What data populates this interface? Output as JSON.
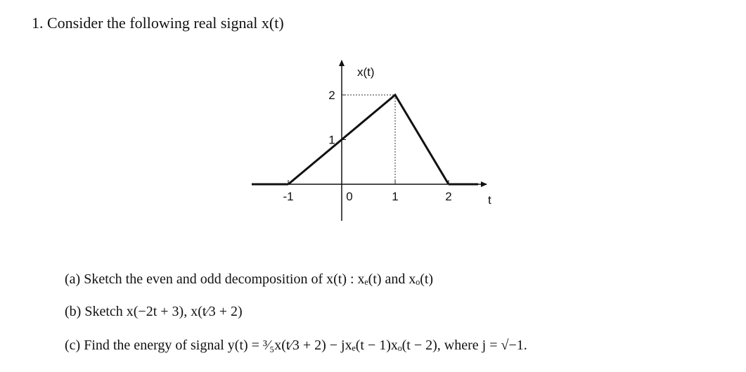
{
  "title": "1. Consider the following real signal x(t)",
  "figure": {
    "label": "x(t)",
    "x_label": "t",
    "xticks": [
      -1,
      0,
      1,
      2
    ],
    "yticks": [
      1,
      2
    ],
    "points": {
      "t": [
        -1,
        1,
        2
      ],
      "x": [
        0,
        2,
        0
      ]
    }
  },
  "questions": [
    "(a) Sketch the even and odd decomposition of x(t) : xₑ(t) and xₒ(t)",
    "(b) Sketch x(−2t + 3), x(t⁄3 + 2)",
    "(c) Find the energy of signal y(t) = ³⁄₅x(t⁄3 + 2) − jxₑ(t − 1)xₒ(t − 2), where j = √−1."
  ]
}
